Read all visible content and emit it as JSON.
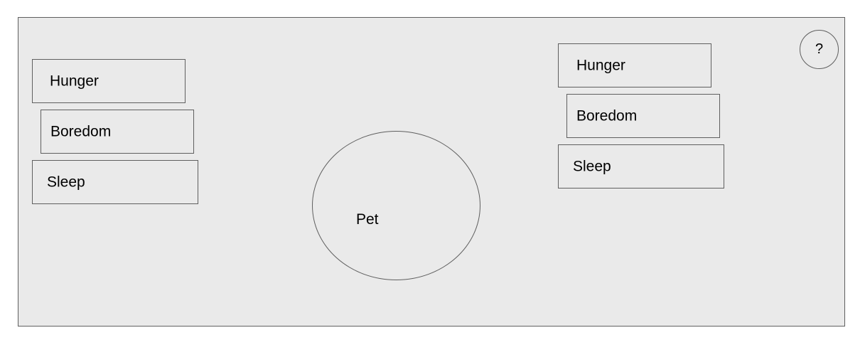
{
  "left_panel": {
    "hunger_label": "Hunger",
    "boredom_label": "Boredom",
    "sleep_label": "Sleep"
  },
  "right_panel": {
    "hunger_label": "Hunger",
    "boredom_label": "Boredom",
    "sleep_label": "Sleep"
  },
  "pet": {
    "label": "Pet"
  },
  "help_button": {
    "label": "?"
  },
  "colors": {
    "background": "#eaeaea",
    "border": "#5f5f5f"
  }
}
